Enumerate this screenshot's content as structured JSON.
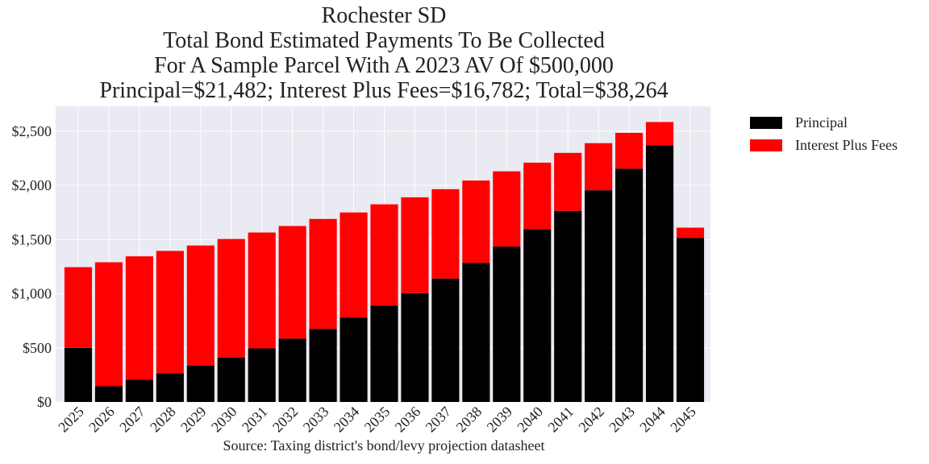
{
  "chart_data": {
    "type": "bar",
    "stacked": true,
    "title": [
      "Rochester SD",
      "Total Bond Estimated Payments To Be Collected",
      "For A Sample Parcel With A 2023 AV Of $500,000",
      "Principal=$21,482; Interest Plus Fees=$16,782; Total=$38,264"
    ],
    "categories": [
      "2025",
      "2026",
      "2027",
      "2028",
      "2029",
      "2030",
      "2031",
      "2032",
      "2033",
      "2034",
      "2035",
      "2036",
      "2037",
      "2038",
      "2039",
      "2040",
      "2041",
      "2042",
      "2043",
      "2044",
      "2045"
    ],
    "series": [
      {
        "name": "Principal",
        "color": "#000000",
        "values": [
          500,
          145,
          205,
          265,
          335,
          410,
          495,
          585,
          675,
          780,
          890,
          1005,
          1140,
          1285,
          1435,
          1595,
          1765,
          1955,
          2155,
          2370,
          1515
        ]
      },
      {
        "name": "Interest Plus Fees",
        "color": "#ff0000",
        "values": [
          745,
          1145,
          1140,
          1130,
          1110,
          1095,
          1070,
          1040,
          1015,
          970,
          935,
          885,
          825,
          760,
          695,
          615,
          535,
          435,
          330,
          215,
          95
        ]
      }
    ],
    "yticks": [
      "$0",
      "$500",
      "$1,000",
      "$1,500",
      "$2,000",
      "$2,500"
    ],
    "ytick_values": [
      0,
      500,
      1000,
      1500,
      2000,
      2500
    ],
    "ylim": [
      0,
      2730
    ],
    "grid": true,
    "legend_position": "outside-right-top",
    "background": "#eaeaf2",
    "source": "Source: Taxing district's bond/levy projection datasheet"
  }
}
